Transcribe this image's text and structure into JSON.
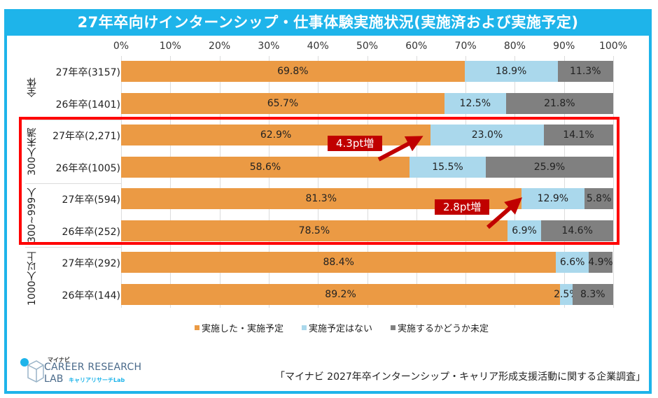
{
  "title": "27年卒向けインターンシップ・仕事体験実施状況(実施済および実施予定)",
  "source": "「マイナビ 2027年卒インターンシップ・キャリア形成支援活動に関する企業調査」",
  "logo": {
    "small": "マイナビ",
    "main": "CAREER RESEARCH",
    "lab": "LAB",
    "sub": "キャリアリサーチLab"
  },
  "callouts": [
    {
      "label": "4.3pt増",
      "group": "300人未満"
    },
    {
      "label": "2.8pt増",
      "group": "300~999人"
    }
  ],
  "colors": {
    "title_bg": "#1eb4ea",
    "implemented": "#eb9a44",
    "not_planned": "#aad8ec",
    "undecided": "#808080",
    "highlight": "#ff0000",
    "callout": "#c00000"
  },
  "chart_data": {
    "type": "bar",
    "orientation": "horizontal",
    "stacked": true,
    "title": "27年卒向けインターンシップ・仕事体験実施状況(実施済および実施予定)",
    "xlabel": "",
    "ylabel": "",
    "xlim": [
      0,
      100
    ],
    "x_ticks": [
      "0%",
      "10%",
      "20%",
      "30%",
      "40%",
      "50%",
      "60%",
      "70%",
      "80%",
      "90%",
      "100%"
    ],
    "grid": true,
    "legend_position": "bottom",
    "groups": [
      {
        "name": "全体",
        "rows": [
          0,
          1
        ]
      },
      {
        "name": "300人未満",
        "rows": [
          2,
          3
        ]
      },
      {
        "name": "300~999人",
        "rows": [
          4,
          5
        ]
      },
      {
        "name": "1000人以上",
        "rows": [
          6,
          7
        ]
      }
    ],
    "categories": [
      "27年卒(3157)",
      "26年卒(1401)",
      "27年卒(2,271)",
      "26年卒(1005)",
      "27年卒(594)",
      "26年卒(252)",
      "27年卒(292)",
      "26年卒(144)"
    ],
    "series": [
      {
        "name": "実施した・実施予定",
        "color": "#eb9a44",
        "values": [
          69.8,
          65.7,
          62.9,
          58.6,
          81.3,
          78.5,
          88.4,
          89.2
        ],
        "labels": [
          "69.8%",
          "65.7%",
          "62.9%",
          "58.6%",
          "81.3%",
          "78.5%",
          "88.4%",
          "89.2%"
        ]
      },
      {
        "name": "実施予定はない",
        "color": "#aad8ec",
        "values": [
          18.9,
          12.5,
          23.0,
          15.5,
          12.9,
          6.9,
          6.6,
          2.5
        ],
        "labels": [
          "18.9%",
          "12.5%",
          "23.0%",
          "15.5%",
          "12.9%",
          "6.9%",
          "6.6%",
          "2.5%"
        ]
      },
      {
        "name": "実施するかどうか未定",
        "color": "#808080",
        "values": [
          11.3,
          21.8,
          14.1,
          25.9,
          5.8,
          14.6,
          4.9,
          8.3
        ],
        "labels": [
          "11.3%",
          "21.8%",
          "14.1%",
          "25.9%",
          "5.8%",
          "14.6%",
          "4.9%",
          "8.3%"
        ]
      }
    ]
  }
}
